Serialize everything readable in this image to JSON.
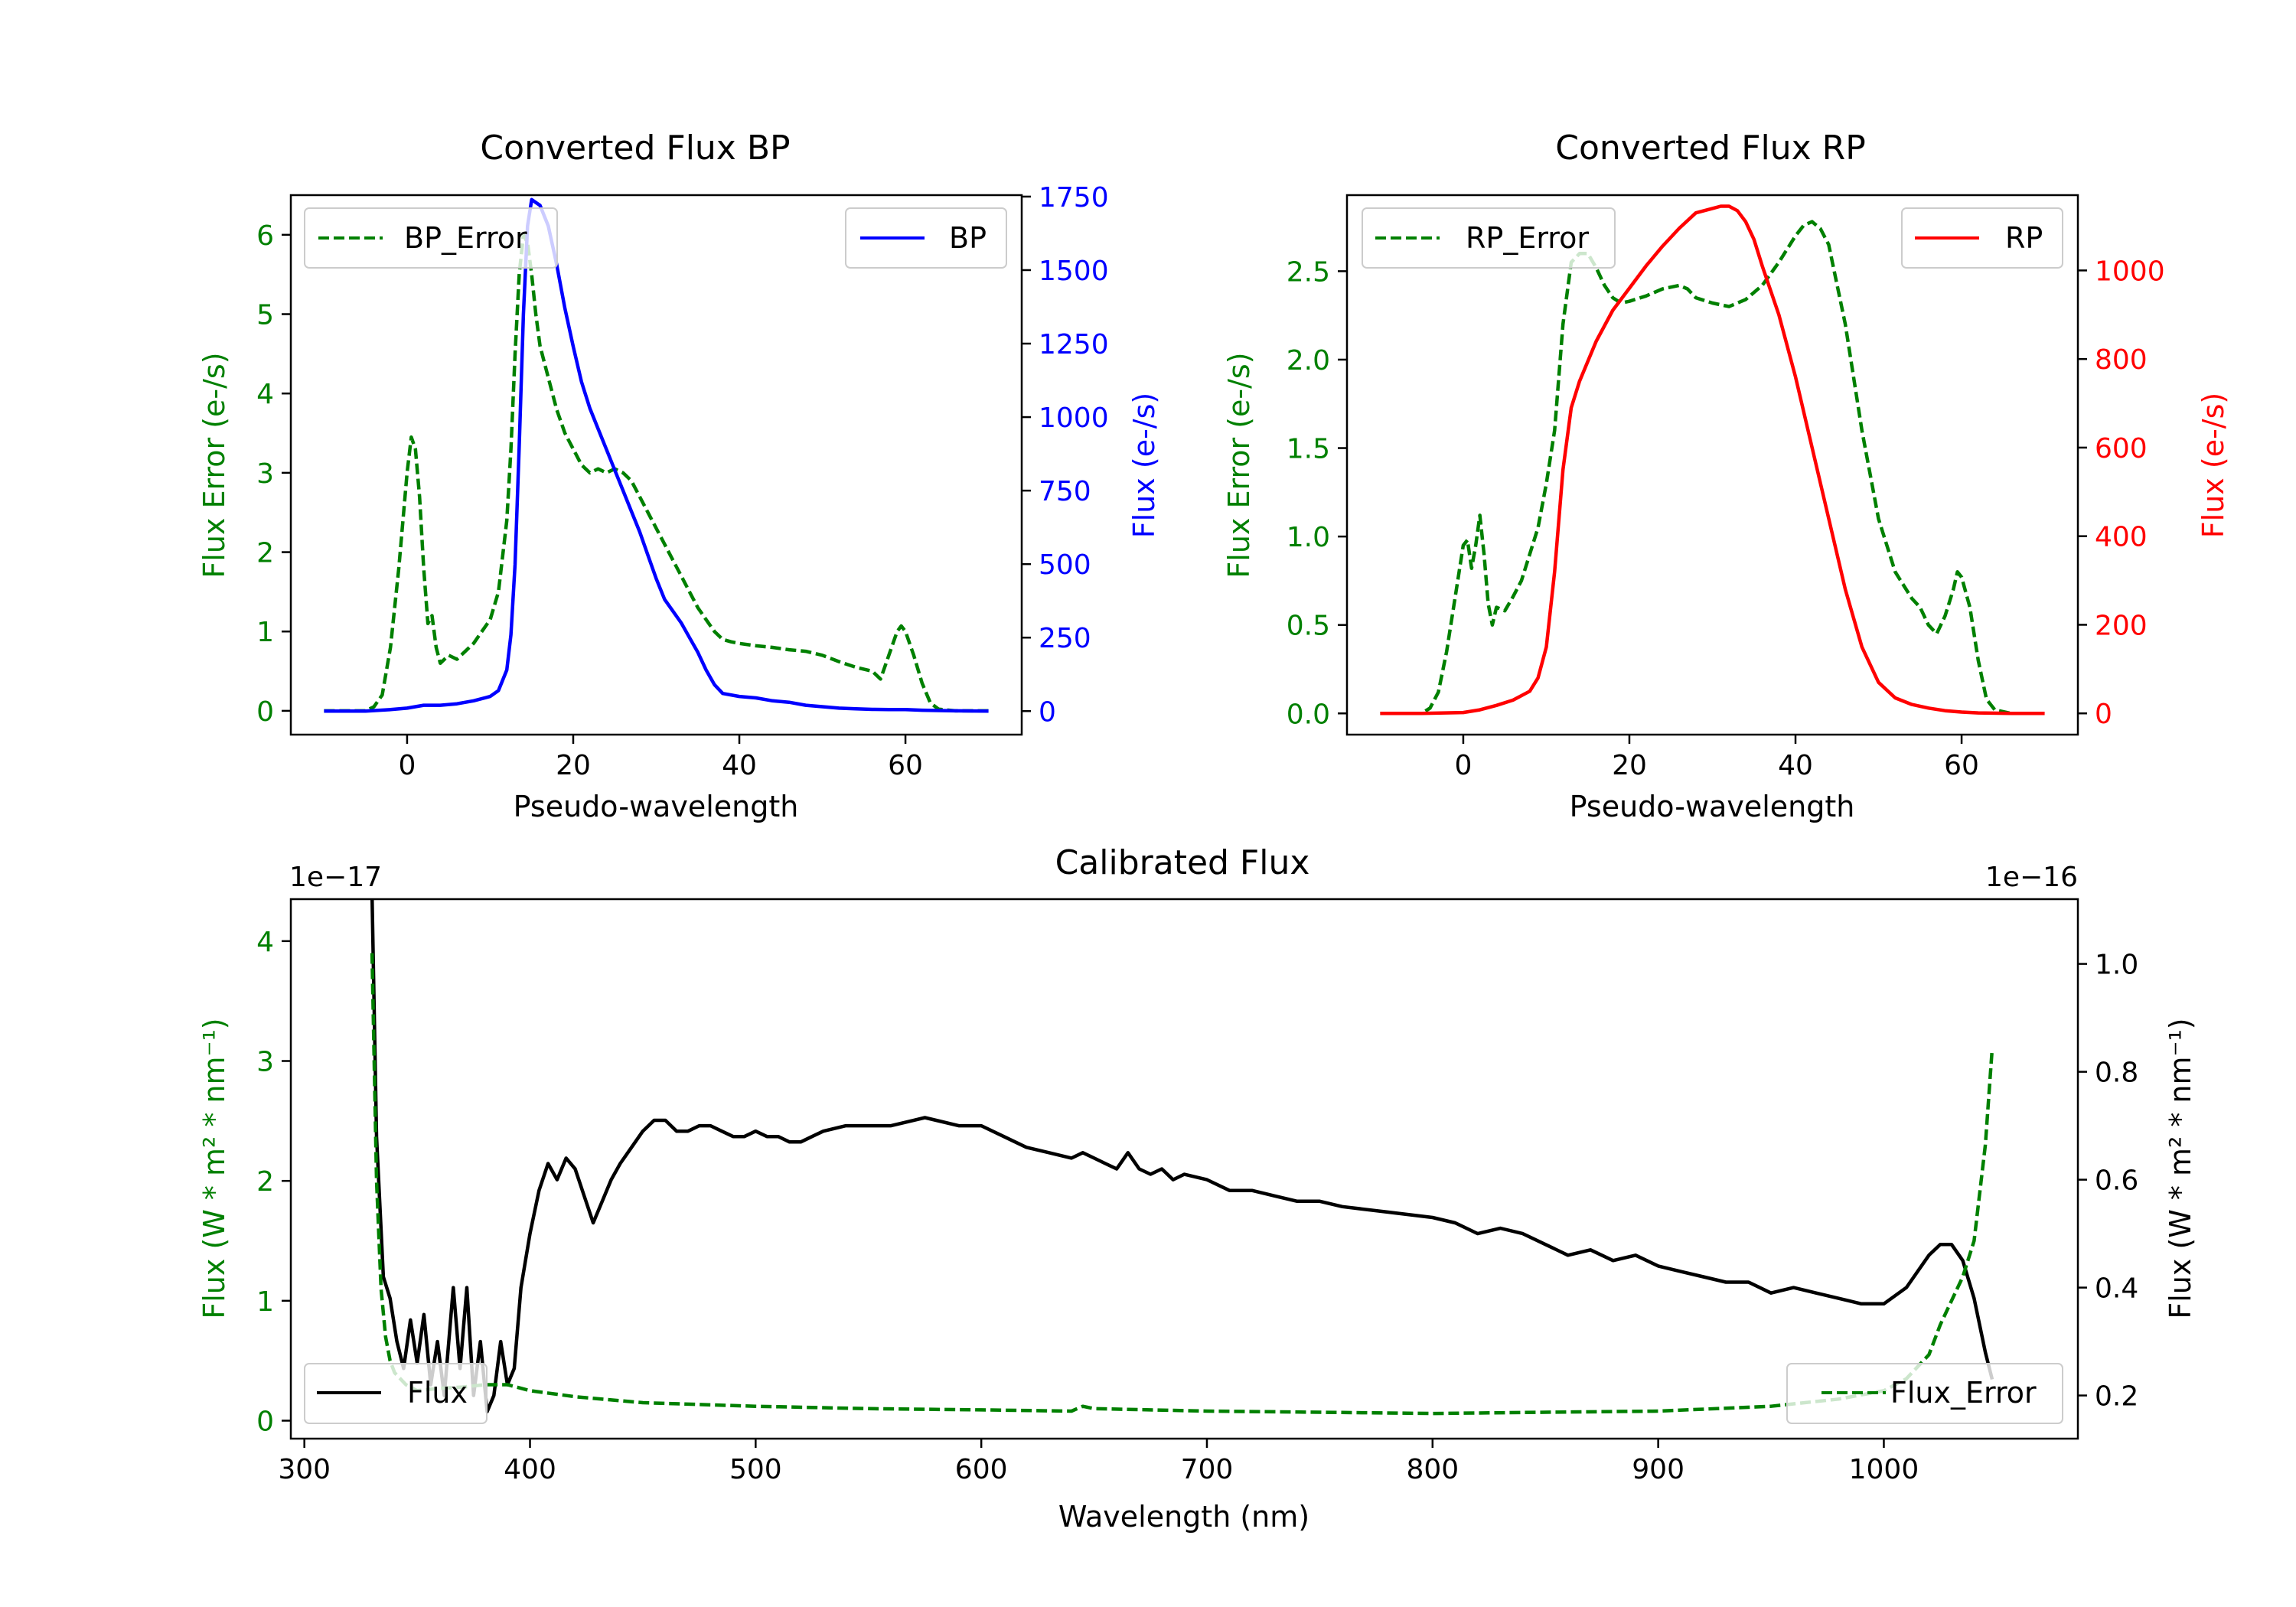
{
  "colors": {
    "green": "#008000",
    "blue": "#0000ff",
    "red": "#ff0000",
    "black": "#000000"
  },
  "chart_data": [
    {
      "id": "bp",
      "type": "line",
      "title": "Converted Flux BP",
      "xlabel": "Pseudo-wavelength",
      "ylabel_left": "Flux Error (e-/s)",
      "ylabel_right": "Flux (e-/s)",
      "xlim": [
        -14,
        74
      ],
      "ylim_left": [
        -0.3,
        6.5
      ],
      "ylim_right": [
        -80,
        1755
      ],
      "xticks": [
        0,
        20,
        40,
        60
      ],
      "yticks_left": [
        0,
        1,
        2,
        3,
        4,
        5,
        6
      ],
      "yticks_right": [
        0,
        250,
        500,
        750,
        1000,
        1250,
        1500,
        1750
      ],
      "legend_left": "top-left",
      "legend_right": "top-right",
      "series": [
        {
          "name": "BP_Error",
          "axis": "left",
          "color": "#008000",
          "dash": true,
          "x": [
            -10,
            -5,
            -4,
            -3,
            -2,
            -1,
            0,
            0.5,
            1,
            1.5,
            2,
            2.5,
            3,
            3.5,
            4,
            5,
            6,
            7,
            8,
            9,
            10,
            11,
            12,
            12.5,
            13,
            13.5,
            14,
            14.5,
            15,
            15.5,
            16,
            17,
            18,
            19,
            20,
            21,
            22,
            23,
            24,
            25,
            26,
            27,
            28,
            29,
            30,
            31,
            32,
            33,
            34,
            35,
            36,
            37,
            38,
            39,
            40,
            42,
            44,
            46,
            48,
            50,
            52,
            54,
            56,
            57,
            58,
            59,
            59.5,
            60,
            61,
            62,
            63,
            64,
            66,
            70
          ],
          "values": [
            0,
            0,
            0.05,
            0.2,
            0.8,
            1.8,
            3.0,
            3.45,
            3.3,
            2.7,
            1.8,
            1.1,
            1.2,
            0.8,
            0.6,
            0.7,
            0.65,
            0.75,
            0.85,
            1.0,
            1.15,
            1.5,
            2.4,
            3.3,
            4.5,
            5.5,
            6.0,
            5.9,
            5.5,
            5.0,
            4.6,
            4.2,
            3.8,
            3.5,
            3.3,
            3.1,
            3.0,
            3.05,
            3.0,
            3.05,
            3.0,
            2.9,
            2.7,
            2.5,
            2.3,
            2.1,
            1.9,
            1.7,
            1.5,
            1.3,
            1.15,
            1.0,
            0.9,
            0.87,
            0.85,
            0.82,
            0.8,
            0.77,
            0.75,
            0.7,
            0.62,
            0.55,
            0.5,
            0.4,
            0.7,
            1.0,
            1.07,
            1.0,
            0.7,
            0.35,
            0.1,
            0.02,
            0,
            0
          ]
        },
        {
          "name": "BP",
          "axis": "right",
          "color": "#0000ff",
          "dash": false,
          "x": [
            -10,
            -5,
            -2,
            0,
            1,
            2,
            4,
            6,
            8,
            10,
            11,
            12,
            12.5,
            13,
            13.5,
            14,
            14.5,
            15,
            15.5,
            16,
            17,
            18,
            19,
            20,
            21,
            22,
            23,
            24,
            25,
            26,
            27,
            28,
            29,
            30,
            31,
            32,
            33,
            34,
            35,
            36,
            37,
            38,
            40,
            42,
            44,
            46,
            48,
            50,
            52,
            54,
            56,
            58,
            60,
            62,
            64,
            66,
            70
          ],
          "values": [
            0,
            0,
            5,
            10,
            15,
            20,
            20,
            25,
            35,
            50,
            70,
            140,
            260,
            500,
            900,
            1350,
            1650,
            1740,
            1730,
            1720,
            1650,
            1520,
            1370,
            1240,
            1120,
            1030,
            960,
            890,
            820,
            750,
            680,
            610,
            530,
            450,
            380,
            340,
            300,
            250,
            200,
            140,
            90,
            60,
            50,
            45,
            35,
            30,
            20,
            15,
            10,
            8,
            6,
            5,
            5,
            3,
            2,
            1,
            0
          ]
        }
      ]
    },
    {
      "id": "rp",
      "type": "line",
      "title": "Converted Flux RP",
      "xlabel": "Pseudo-wavelength",
      "ylabel_left": "Flux Error (e-/s)",
      "ylabel_right": "Flux (e-/s)",
      "xlim": [
        -14,
        74
      ],
      "ylim_left": [
        -0.12,
        2.93
      ],
      "ylim_right": [
        -48,
        1170
      ],
      "xticks": [
        0,
        20,
        40,
        60
      ],
      "yticks_left": [
        0.0,
        0.5,
        1.0,
        1.5,
        2.0,
        2.5
      ],
      "yticks_right": [
        0,
        200,
        400,
        600,
        800,
        1000
      ],
      "legend_left": "top-left",
      "legend_right": "top-right",
      "series": [
        {
          "name": "RP_Error",
          "axis": "left",
          "color": "#008000",
          "dash": true,
          "x": [
            -10,
            -5,
            -4,
            -3,
            -2,
            -1,
            0,
            0.5,
            1,
            1.5,
            2,
            2.5,
            3,
            3.5,
            4,
            5,
            6,
            7,
            8,
            9,
            10,
            11,
            12,
            13,
            14,
            15,
            16,
            17,
            18,
            19,
            20,
            22,
            24,
            26,
            27,
            28,
            30,
            32,
            34,
            36,
            38,
            40,
            41,
            42,
            43,
            44,
            46,
            48,
            50,
            52,
            54,
            55,
            56,
            57,
            58,
            59,
            59.5,
            60,
            61,
            62,
            63,
            64,
            66,
            70
          ],
          "values": [
            0,
            0,
            0.03,
            0.12,
            0.35,
            0.65,
            0.95,
            0.98,
            0.82,
            0.95,
            1.12,
            0.9,
            0.62,
            0.5,
            0.6,
            0.58,
            0.66,
            0.75,
            0.9,
            1.05,
            1.3,
            1.6,
            2.2,
            2.55,
            2.6,
            2.6,
            2.52,
            2.42,
            2.35,
            2.32,
            2.33,
            2.36,
            2.4,
            2.42,
            2.4,
            2.35,
            2.32,
            2.3,
            2.34,
            2.42,
            2.55,
            2.7,
            2.76,
            2.78,
            2.74,
            2.65,
            2.2,
            1.6,
            1.1,
            0.8,
            0.65,
            0.6,
            0.5,
            0.45,
            0.55,
            0.7,
            0.8,
            0.77,
            0.6,
            0.3,
            0.08,
            0.02,
            0,
            0
          ]
        },
        {
          "name": "RP",
          "axis": "right",
          "color": "#ff0000",
          "dash": false,
          "x": [
            -10,
            -5,
            0,
            2,
            4,
            6,
            8,
            9,
            10,
            11,
            12,
            13,
            14,
            16,
            18,
            20,
            22,
            24,
            26,
            28,
            30,
            31,
            32,
            33,
            34,
            35,
            36,
            38,
            40,
            42,
            44,
            46,
            48,
            50,
            52,
            54,
            56,
            58,
            60,
            62,
            66,
            70
          ],
          "values": [
            0,
            0,
            2,
            8,
            18,
            30,
            50,
            80,
            150,
            320,
            550,
            690,
            750,
            840,
            910,
            960,
            1010,
            1055,
            1095,
            1130,
            1140,
            1145,
            1145,
            1135,
            1110,
            1070,
            1010,
            900,
            760,
            600,
            440,
            280,
            150,
            70,
            35,
            20,
            12,
            6,
            3,
            1,
            0,
            0
          ]
        }
      ]
    },
    {
      "id": "cal",
      "type": "line",
      "title": "Calibrated Flux",
      "xlabel": "Wavelength (nm)",
      "ylabel_left": "Flux (W * m² * nm⁻¹)",
      "ylabel_right": "Flux (W * m² * nm⁻¹)",
      "offset_left": "1e−17",
      "offset_right": "1e−16",
      "xlim": [
        294,
        1086
      ],
      "ylim_left": [
        -0.15,
        4.35
      ],
      "ylim_right": [
        0.12,
        1.12
      ],
      "xticks": [
        300,
        400,
        500,
        600,
        700,
        800,
        900,
        1000
      ],
      "yticks_left": [
        0,
        1,
        2,
        3,
        4
      ],
      "yticks_right": [
        0.2,
        0.4,
        0.6,
        0.8,
        1.0
      ],
      "legend_left": "bottom-left",
      "legend_right": "bottom-right",
      "series": [
        {
          "name": "Flux",
          "axis": "right",
          "color": "#000000",
          "dash": false,
          "x": [
            330,
            332,
            335,
            338,
            341,
            344,
            347,
            350,
            353,
            356,
            359,
            362,
            366,
            369,
            372,
            375,
            378,
            381,
            384,
            387,
            390,
            393,
            396,
            400,
            404,
            408,
            412,
            416,
            420,
            424,
            428,
            432,
            436,
            440,
            445,
            450,
            455,
            460,
            465,
            470,
            475,
            480,
            485,
            490,
            495,
            500,
            505,
            510,
            515,
            520,
            525,
            530,
            540,
            550,
            560,
            570,
            575,
            580,
            590,
            600,
            610,
            620,
            630,
            640,
            645,
            650,
            655,
            660,
            665,
            670,
            675,
            680,
            685,
            690,
            700,
            710,
            720,
            730,
            740,
            750,
            760,
            780,
            800,
            810,
            820,
            830,
            840,
            850,
            860,
            870,
            880,
            890,
            900,
            910,
            920,
            930,
            940,
            950,
            960,
            970,
            980,
            990,
            1000,
            1010,
            1020,
            1025,
            1030,
            1035,
            1040,
            1045,
            1048
          ],
          "values": [
            1.13,
            0.68,
            0.42,
            0.38,
            0.3,
            0.25,
            0.34,
            0.26,
            0.35,
            0.22,
            0.3,
            0.2,
            0.4,
            0.25,
            0.4,
            0.2,
            0.3,
            0.17,
            0.2,
            0.3,
            0.22,
            0.25,
            0.4,
            0.5,
            0.58,
            0.63,
            0.6,
            0.64,
            0.62,
            0.57,
            0.52,
            0.56,
            0.6,
            0.63,
            0.66,
            0.69,
            0.71,
            0.71,
            0.69,
            0.69,
            0.7,
            0.7,
            0.69,
            0.68,
            0.68,
            0.69,
            0.68,
            0.68,
            0.67,
            0.67,
            0.68,
            0.69,
            0.7,
            0.7,
            0.7,
            0.71,
            0.715,
            0.71,
            0.7,
            0.7,
            0.68,
            0.66,
            0.65,
            0.64,
            0.65,
            0.64,
            0.63,
            0.62,
            0.65,
            0.62,
            0.61,
            0.62,
            0.6,
            0.61,
            0.6,
            0.58,
            0.58,
            0.57,
            0.56,
            0.56,
            0.55,
            0.54,
            0.53,
            0.52,
            0.5,
            0.51,
            0.5,
            0.48,
            0.46,
            0.47,
            0.45,
            0.46,
            0.44,
            0.43,
            0.42,
            0.41,
            0.41,
            0.39,
            0.4,
            0.39,
            0.38,
            0.37,
            0.37,
            0.4,
            0.46,
            0.48,
            0.48,
            0.45,
            0.38,
            0.28,
            0.23
          ]
        },
        {
          "name": "Flux_Error",
          "axis": "left",
          "color": "#008000",
          "dash": true,
          "x": [
            330,
            332,
            334,
            336,
            338,
            340,
            345,
            350,
            360,
            370,
            380,
            390,
            400,
            420,
            450,
            500,
            550,
            600,
            640,
            645,
            650,
            700,
            750,
            800,
            850,
            900,
            950,
            980,
            1000,
            1010,
            1020,
            1025,
            1030,
            1035,
            1040,
            1045,
            1048
          ],
          "values": [
            3.9,
            2.0,
            1.1,
            0.7,
            0.5,
            0.4,
            0.3,
            0.25,
            0.27,
            0.28,
            0.3,
            0.3,
            0.25,
            0.2,
            0.15,
            0.12,
            0.1,
            0.09,
            0.08,
            0.12,
            0.1,
            0.08,
            0.07,
            0.06,
            0.07,
            0.08,
            0.12,
            0.18,
            0.25,
            0.35,
            0.55,
            0.8,
            1.0,
            1.2,
            1.5,
            2.3,
            3.1
          ]
        }
      ]
    }
  ]
}
